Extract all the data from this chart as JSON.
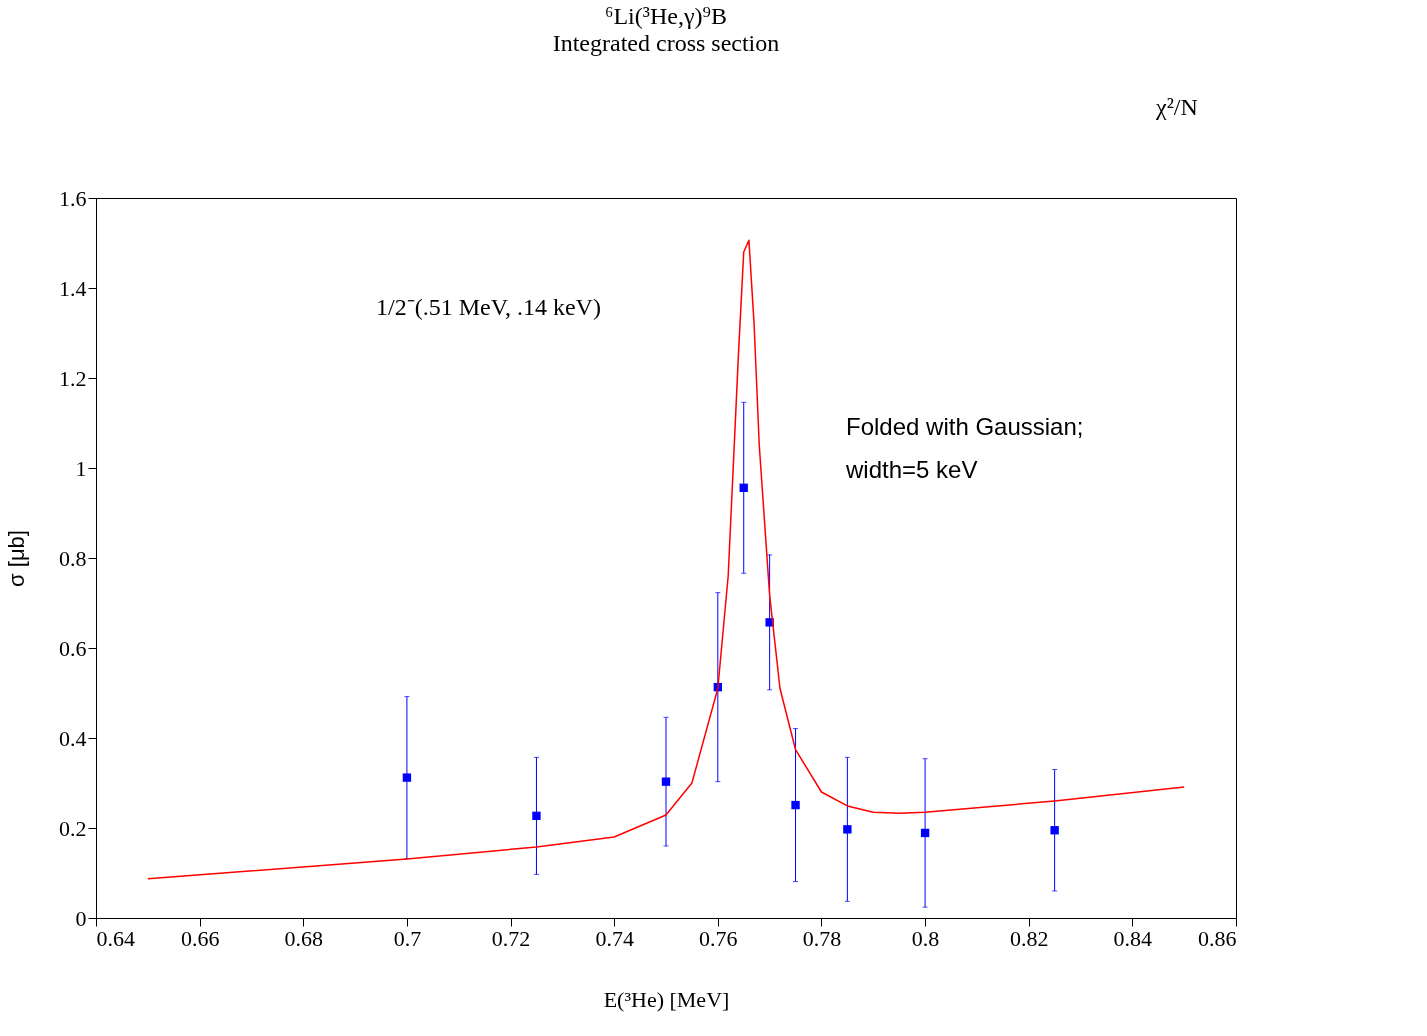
{
  "chart_data": {
    "type": "scatter",
    "title": "⁶Li(³He,γ)⁹B",
    "subtitle": "Integrated cross section",
    "xlabel": "E(³He) [MeV]",
    "ylabel": "σ [μb]",
    "xlim": [
      0.64,
      0.86
    ],
    "ylim": [
      0,
      1.6
    ],
    "xticks": [
      0.64,
      0.66,
      0.68,
      0.7,
      0.72,
      0.74,
      0.76,
      0.78,
      0.8,
      0.82,
      0.84,
      0.86
    ],
    "yticks": [
      0,
      0.2,
      0.4,
      0.6,
      0.8,
      1,
      1.2,
      1.4,
      1.6
    ],
    "grid": false,
    "series": [
      {
        "type": "scatter",
        "marker": "square",
        "color": "#0000ff",
        "x": [
          0.7,
          0.725,
          0.75,
          0.76,
          0.765,
          0.77,
          0.775,
          0.785,
          0.8,
          0.825
        ],
        "values": [
          0.312,
          0.227,
          0.303,
          0.513,
          0.956,
          0.657,
          0.251,
          0.197,
          0.189,
          0.195
        ],
        "errors": [
          0.18,
          0.13,
          0.143,
          0.21,
          0.19,
          0.15,
          0.17,
          0.16,
          0.165,
          0.135
        ]
      },
      {
        "type": "line",
        "marker": "none",
        "color": "#ff0000",
        "x": [
          0.65,
          0.7,
          0.725,
          0.74,
          0.75,
          0.755,
          0.76,
          0.762,
          0.764,
          0.765,
          0.766,
          0.767,
          0.768,
          0.77,
          0.772,
          0.775,
          0.78,
          0.785,
          0.79,
          0.795,
          0.8,
          0.81,
          0.825,
          0.85
        ],
        "values": [
          0.087,
          0.131,
          0.158,
          0.18,
          0.229,
          0.3,
          0.51,
          0.76,
          1.257,
          1.48,
          1.506,
          1.32,
          1.05,
          0.717,
          0.51,
          0.374,
          0.28,
          0.249,
          0.235,
          0.233,
          0.235,
          0.245,
          0.26,
          0.291
        ]
      }
    ],
    "annotations": [
      "1/2⁻(.51 MeV, .14 keV)",
      "Folded with Gaussian;\nwidth=5 keV",
      "χ²/N"
    ]
  }
}
